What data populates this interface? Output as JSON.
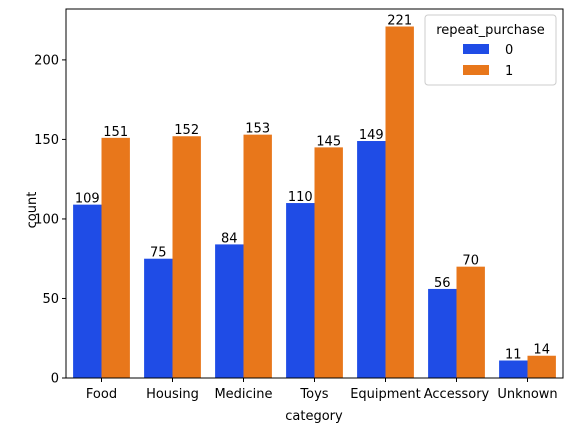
{
  "chart_data": {
    "type": "bar",
    "xlabel": "category",
    "ylabel": "count",
    "categories": [
      "Food",
      "Housing",
      "Medicine",
      "Toys",
      "Equipment",
      "Accessory",
      "Unknown"
    ],
    "ylim": [
      0,
      232
    ],
    "yticks": [
      "0",
      "50",
      "100",
      "150",
      "200"
    ],
    "legend": {
      "title": "repeat_purchase",
      "placement": "top-right"
    },
    "series": [
      {
        "name": "0",
        "color": "#1f4ce6",
        "values": [
          109,
          75,
          84,
          110,
          149,
          56,
          11
        ]
      },
      {
        "name": "1",
        "color": "#e8771b",
        "values": [
          151,
          152,
          153,
          145,
          221,
          70,
          14
        ]
      }
    ],
    "grid": false
  }
}
